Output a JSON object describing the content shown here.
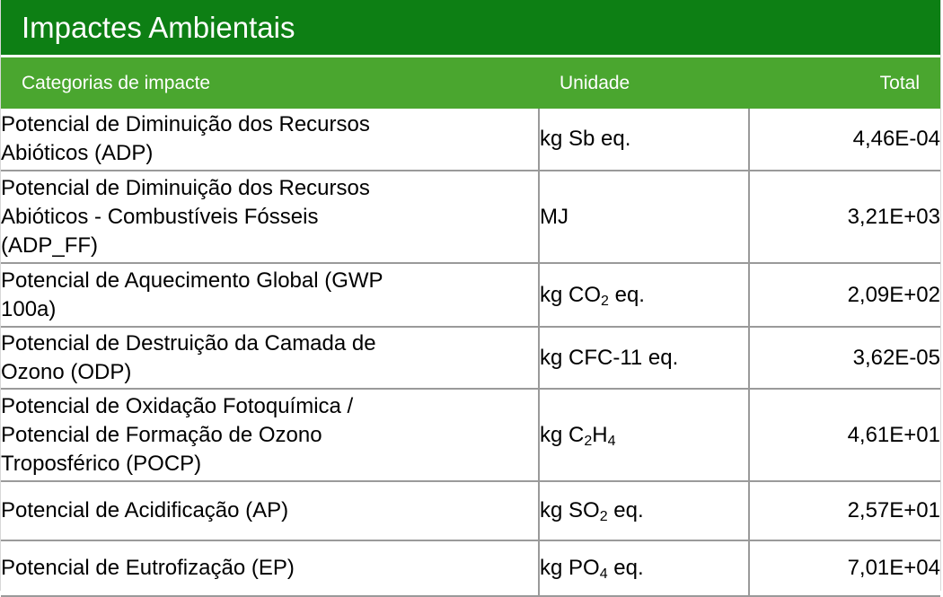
{
  "title": "Impactes Ambientais",
  "colors": {
    "title_bg": "#0d7f14",
    "header_bg": "#4aa62f",
    "grid": "#9a9a9a"
  },
  "header": {
    "category": "Categorias de impacte",
    "unit": "Unidade",
    "total": "Total"
  },
  "rows": [
    {
      "category_lines": [
        "Potencial de Diminuição dos Recursos",
        "Abióticos (ADP)"
      ],
      "unit": {
        "pre": "kg Sb eq.",
        "sub": "",
        "post": ""
      },
      "total": "4,46E-04"
    },
    {
      "category_lines": [
        "Potencial de Diminuição dos Recursos",
        "Abióticos  - Combustíveis Fósseis",
        "(ADP_FF)"
      ],
      "unit": {
        "pre": "MJ",
        "sub": "",
        "post": ""
      },
      "total": "3,21E+03"
    },
    {
      "category_lines": [
        "Potencial de Aquecimento Global (GWP",
        "100a)"
      ],
      "unit": {
        "pre": "kg CO",
        "sub": "2",
        "post": " eq."
      },
      "total": "2,09E+02"
    },
    {
      "category_lines": [
        "Potencial de Destruição da Camada de",
        "Ozono (ODP)"
      ],
      "unit": {
        "pre": "kg CFC-11 eq.",
        "sub": "",
        "post": ""
      },
      "total": "3,62E-05"
    },
    {
      "category_lines": [
        "Potencial de Oxidação Fotoquímica /",
        "Potencial de Formação de Ozono",
        "Troposférico (POCP)"
      ],
      "unit": {
        "pre": "kg C",
        "sub": "2",
        "post": "H",
        "sub2": "4",
        "post2": ""
      },
      "total": "4,61E+01"
    },
    {
      "category_lines": [
        "Potencial de Acidificação (AP)"
      ],
      "unit": {
        "pre": "kg SO",
        "sub": "2",
        "post": " eq."
      },
      "total": "2,57E+01"
    },
    {
      "category_lines": [
        "Potencial de Eutrofização (EP)"
      ],
      "unit": {
        "pre": "kg PO",
        "sub": "4",
        "post": " eq."
      },
      "total": "7,01E+04"
    }
  ]
}
